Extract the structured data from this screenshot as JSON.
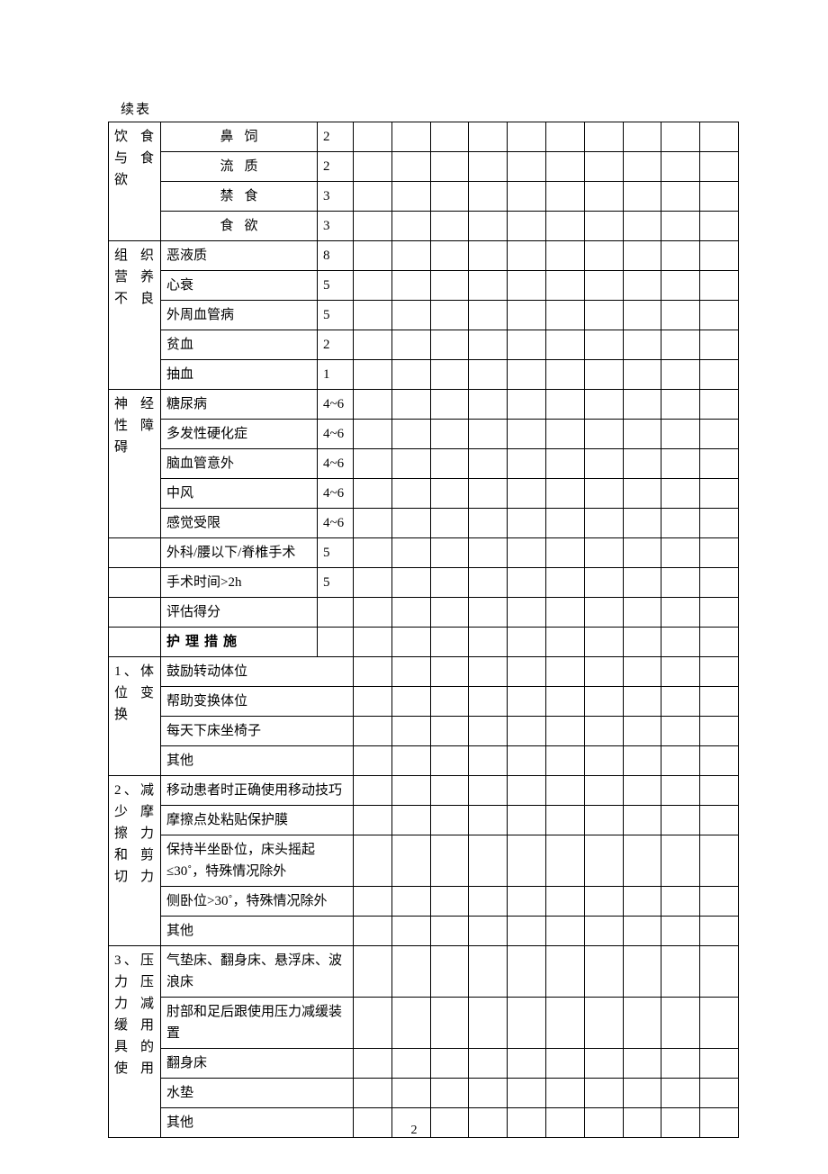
{
  "continued_label": "续表",
  "page_number": "2",
  "section_header": "护理措施",
  "eval_score_label": "评估得分",
  "blank_cols": 10,
  "groups": [
    {
      "category": "饮食与食欲",
      "rows": [
        {
          "item": "鼻饲",
          "center": true,
          "score": "2"
        },
        {
          "item": "流质",
          "center": true,
          "score": "2"
        },
        {
          "item": "禁食",
          "center": true,
          "score": "3"
        },
        {
          "item": "食欲",
          "center": true,
          "score": "3"
        }
      ]
    },
    {
      "category": "组织营养不良",
      "rows": [
        {
          "item": "恶液质",
          "score": "8"
        },
        {
          "item": "心衰",
          "score": "5"
        },
        {
          "item": "外周血管病",
          "score": "5"
        },
        {
          "item": "贫血",
          "score": "2"
        },
        {
          "item": "抽血",
          "score": "1"
        }
      ]
    },
    {
      "category": "神经性障碍",
      "span": 5,
      "extra_after": 2,
      "rows": [
        {
          "item": "糖尿病",
          "score": "4~6"
        },
        {
          "item": "多发性硬化症",
          "score": "4~6"
        },
        {
          "item": "脑血管意外",
          "score": "4~6"
        },
        {
          "item": "中风",
          "score": "4~6"
        },
        {
          "item": "感觉受限",
          "score": "4~6"
        },
        {
          "item": "外科/腰以下/脊椎手术",
          "score": "5",
          "no_cat": true
        },
        {
          "item": "手术时间>2h",
          "score": "5",
          "no_cat": true
        }
      ]
    }
  ],
  "care_groups": [
    {
      "category": "1、体位变换",
      "rows": [
        {
          "item": "鼓励转动体位"
        },
        {
          "item": "帮助变换体位"
        },
        {
          "item": "每天下床坐椅子"
        },
        {
          "item": "其他"
        }
      ]
    },
    {
      "category": "2、减少摩擦力和剪切力",
      "rows": [
        {
          "item": "移动患者时正确使用移动技巧"
        },
        {
          "item": "摩擦点处粘贴保护膜"
        },
        {
          "item": "保持半坐卧位，床头摇起≤30˚，特殊情况除外"
        },
        {
          "item": "侧卧位>30˚，特殊情况除外"
        },
        {
          "item": "其他"
        }
      ]
    },
    {
      "category": "3、压力压力减缓用具的使用",
      "rows": [
        {
          "item": "气垫床、翻身床、悬浮床、波浪床"
        },
        {
          "item": "肘部和足后跟使用压力减缓装置"
        },
        {
          "item": "翻身床"
        },
        {
          "item": "水垫"
        },
        {
          "item": "其他"
        }
      ]
    }
  ]
}
